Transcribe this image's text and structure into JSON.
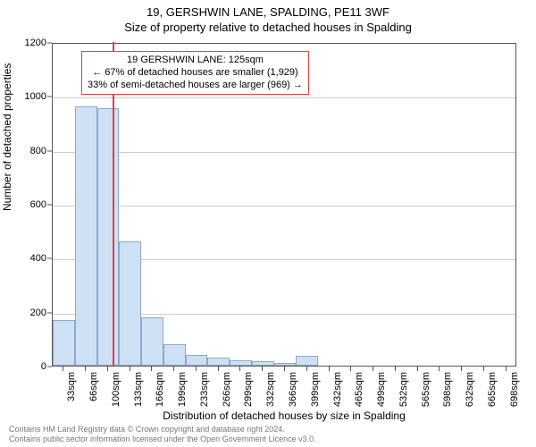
{
  "title": {
    "address": "19, GERSHWIN LANE, SPALDING, PE11 3WF",
    "sub": "Size of property relative to detached houses in Spalding"
  },
  "chart": {
    "type": "histogram",
    "ylabel": "Number of detached properties",
    "xlabel": "Distribution of detached houses by size in Spalding",
    "ylim": [
      0,
      1200
    ],
    "ytick_step": 200,
    "background_color": "#ffffff",
    "grid_color": "#cccccc",
    "axis_color": "#555555",
    "bar_fill": "#d0e0f4",
    "bar_stroke": "#8aa8d0",
    "marker_color": "#e04040",
    "label_fontsize": 12,
    "tick_fontsize": 11,
    "x_categories": [
      "33sqm",
      "66sqm",
      "100sqm",
      "133sqm",
      "166sqm",
      "199sqm",
      "233sqm",
      "266sqm",
      "299sqm",
      "332sqm",
      "366sqm",
      "399sqm",
      "432sqm",
      "465sqm",
      "499sqm",
      "532sqm",
      "565sqm",
      "598sqm",
      "632sqm",
      "665sqm",
      "698sqm"
    ],
    "bars": [
      170,
      960,
      955,
      460,
      180,
      80,
      40,
      30,
      20,
      15,
      10,
      35,
      0,
      0,
      0,
      0,
      0,
      0,
      0,
      0,
      0
    ],
    "marker": {
      "bin_index": 2,
      "fraction_in_bin": 0.76,
      "value_sqm": 125
    },
    "annotation": {
      "lines": [
        "19 GERSHWIN LANE: 125sqm",
        "← 67% of detached houses are smaller (1,929)",
        "33% of semi-detached houses are larger (969) →"
      ],
      "border_color": "#e04040",
      "fontsize": 11
    }
  },
  "attribution": {
    "line1": "Contains HM Land Registry data © Crown copyright and database right 2024.",
    "line2": "Contains public sector information licensed under the Open Government Licence v3.0."
  }
}
